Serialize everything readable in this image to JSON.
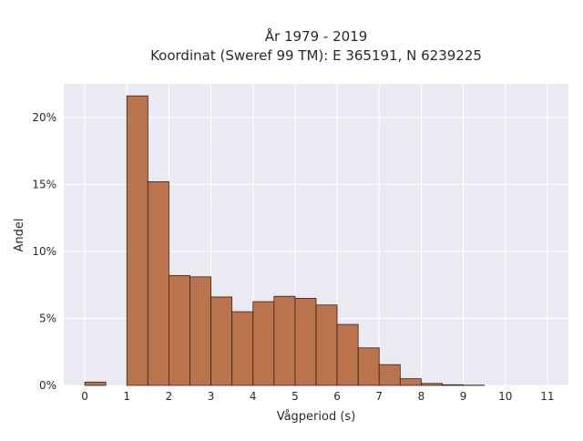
{
  "chart_data": {
    "type": "bar",
    "title_line1": "År 1979 - 2019",
    "title_line2": "Koordinat (Sweref 99 TM): E 365191, N 6239225",
    "xlabel": "Vågperiod (s)",
    "ylabel": "Andel",
    "bin_width": 0.5,
    "bins_left": [
      0,
      0.5,
      1,
      1.5,
      2,
      2.5,
      3,
      3.5,
      4,
      4.5,
      5,
      5.5,
      6,
      6.5,
      7,
      7.5,
      8,
      8.5,
      9,
      9.5,
      10,
      10.5,
      11
    ],
    "values": [
      0.25,
      0,
      21.6,
      15.2,
      8.2,
      8.1,
      6.6,
      5.5,
      6.25,
      6.65,
      6.5,
      6.0,
      4.55,
      2.8,
      1.55,
      0.5,
      0.15,
      0.05,
      0.02,
      0,
      0,
      0,
      0
    ],
    "x_ticks": [
      "0",
      "1",
      "2",
      "3",
      "4",
      "5",
      "6",
      "7",
      "8",
      "9",
      "10",
      "11"
    ],
    "xlim": [
      -0.5,
      11.5
    ],
    "y_ticks": [
      "0%",
      "5%",
      "10%",
      "15%",
      "20%"
    ],
    "y_tick_values": [
      0,
      5,
      10,
      15,
      20
    ],
    "ylim": [
      0,
      22.5
    ],
    "grid": true,
    "colors": {
      "bar_fill": "#b9734d",
      "bar_edge": "#3b2216",
      "plot_bg": "#eaeaf2",
      "grid": "#ffffff"
    }
  }
}
